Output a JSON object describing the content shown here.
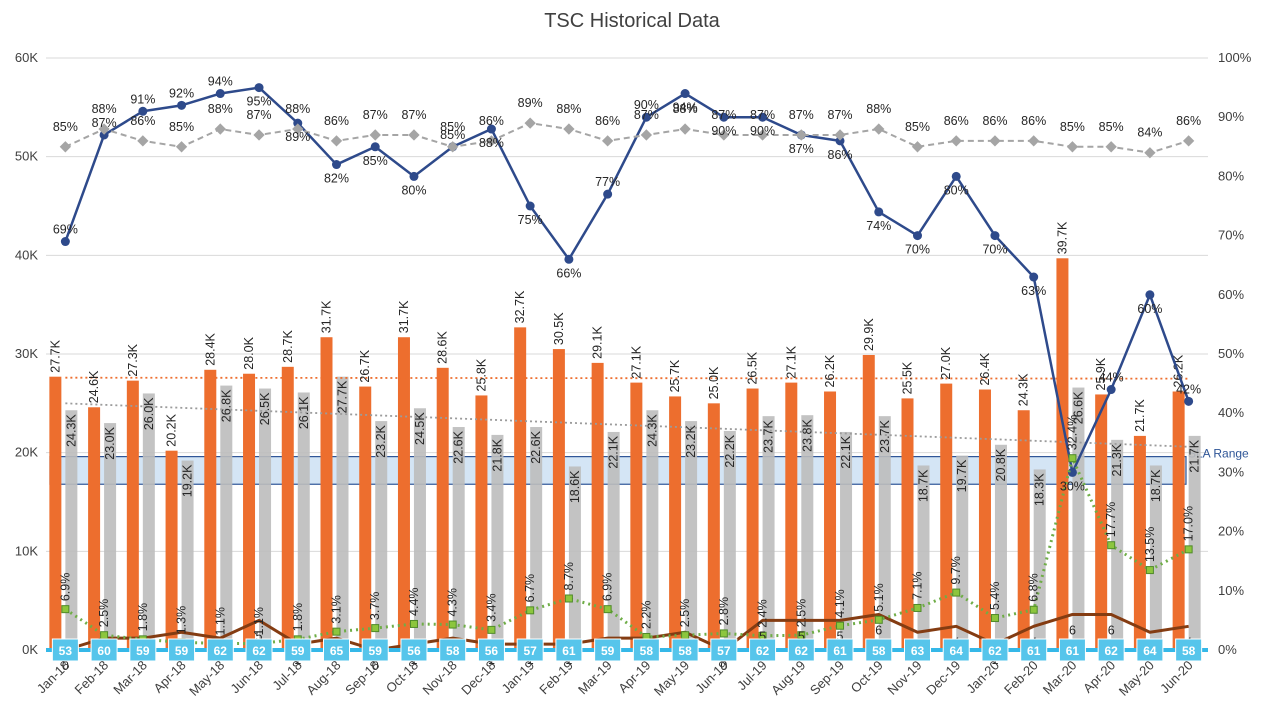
{
  "title": "TSC Historical Data",
  "sla_label": "SLA Range",
  "colors": {
    "orange": "#ED6E2E",
    "gray": "#BCBCBC",
    "navy": "#2E4A8B",
    "brown": "#843C12",
    "lightgray": "#A5A5A5",
    "green": "#6FAD47",
    "cyan": "#35B8E8",
    "sla_fill": "#C6DCF2",
    "sla_stroke": "#2E5597"
  },
  "chart_data": {
    "type": "bar",
    "title": "TSC Historical Data",
    "categories": [
      "Jan-18",
      "Feb-18",
      "Mar-18",
      "Apr-18",
      "May-18",
      "Jun-18",
      "Jul-18",
      "Aug-18",
      "Sep-18",
      "Oct-18",
      "Nov-18",
      "Dec-18",
      "Jan-19",
      "Feb-19",
      "Mar-19",
      "Apr-19",
      "May-19",
      "Jun-19",
      "Jul-19",
      "Aug-19",
      "Sep-19",
      "Oct-19",
      "Nov-19",
      "Dec-19",
      "Jan-20",
      "Feb-20",
      "Mar-20",
      "Apr-20",
      "May-20",
      "Jun-20"
    ],
    "y_left": {
      "ylim": [
        0,
        60000
      ],
      "ticks": [
        0,
        10000,
        20000,
        30000,
        40000,
        50000,
        60000
      ],
      "tick_labels": [
        "0K",
        "10K",
        "20K",
        "30K",
        "40K",
        "50K",
        "60K"
      ]
    },
    "y_right": {
      "ylim": [
        0,
        100
      ],
      "ticks": [
        0,
        10,
        20,
        30,
        40,
        50,
        60,
        70,
        80,
        90,
        100
      ],
      "tick_labels": [
        "0%",
        "10%",
        "20%",
        "30%",
        "40%",
        "50%",
        "60%",
        "70%",
        "80%",
        "90%",
        "100%"
      ]
    },
    "grid": true,
    "sla_range": [
      16800,
      19600
    ],
    "series": [
      {
        "kind": "bar",
        "axis": "left",
        "offset": 0,
        "values": [
          27700,
          24600,
          27300,
          20200,
          28400,
          28000,
          28700,
          31700,
          26700,
          31700,
          28600,
          25800,
          32700,
          30500,
          29100,
          27100,
          25700,
          25000,
          26500,
          27100,
          26200,
          29900,
          25500,
          27000,
          26400,
          24300,
          39700,
          25900,
          21700,
          26200
        ],
        "labels": [
          "27.7K",
          "24.6K",
          "27.3K",
          "20.2K",
          "28.4K",
          "28.0K",
          "28.7K",
          "31.7K",
          "26.7K",
          "31.7K",
          "28.6K",
          "25.8K",
          "32.7K",
          "30.5K",
          "29.1K",
          "27.1K",
          "25.7K",
          "25.0K",
          "26.5K",
          "27.1K",
          "26.2K",
          "29.9K",
          "25.5K",
          "27.0K",
          "26.4K",
          "24.3K",
          "39.7K",
          "25.9K",
          "21.7K",
          "26.2K"
        ]
      },
      {
        "kind": "bar",
        "axis": "left",
        "offset": 1,
        "values": [
          24300,
          23000,
          26000,
          19200,
          26800,
          26500,
          26100,
          27700,
          23200,
          24500,
          22600,
          21800,
          22600,
          18600,
          22100,
          24300,
          23200,
          22200,
          23700,
          23800,
          22100,
          23700,
          18700,
          19700,
          20800,
          18300,
          26600,
          21300,
          18700,
          21700
        ],
        "labels": [
          "24.3K",
          "23.0K",
          "26.0K",
          "19.2K",
          "26.8K",
          "26.5K",
          "26.1K",
          "27.7K",
          "23.2K",
          "24.5K",
          "22.6K",
          "21.8K",
          "22.6K",
          "18.6K",
          "22.1K",
          "24.3K",
          "23.2K",
          "22.2K",
          "23.7K",
          "23.8K",
          "22.1K",
          "23.7K",
          "18.7K",
          "19.7K",
          "20.8K",
          "18.3K",
          "26.6K",
          "21.3K",
          "18.7K",
          "21.7K"
        ]
      },
      {
        "kind": "line",
        "axis": "right",
        "style": "navy",
        "values": [
          69,
          87,
          91,
          92,
          94,
          95,
          89,
          82,
          85,
          80,
          85,
          88,
          75,
          66,
          77,
          90,
          94,
          90,
          90,
          87,
          86,
          74,
          70,
          80,
          70,
          63,
          30,
          44,
          60,
          42
        ],
        "labels": [
          "69%",
          "87%",
          "91%",
          "92%",
          "94%",
          "95%",
          "89%",
          "82%",
          "85%",
          "80%",
          "85%",
          "88%",
          "75%",
          "66%",
          "77%",
          "90%",
          "94%",
          "90%",
          "90%",
          "87%",
          "86%",
          "74%",
          "70%",
          "80%",
          "70%",
          "63%",
          "30%",
          "44%",
          "60%",
          "42%"
        ]
      },
      {
        "kind": "line",
        "axis": "right",
        "style": "lightgray-dashed",
        "values": [
          85,
          88,
          86,
          85,
          88,
          87,
          88,
          86,
          87,
          87,
          85,
          86,
          89,
          88,
          86,
          87,
          88,
          87,
          87,
          87,
          87,
          88,
          85,
          86,
          86,
          86,
          85,
          85,
          84,
          86
        ],
        "labels": [
          "85%",
          "88%",
          "86%",
          "85%",
          "88%",
          "87%",
          "88%",
          "86%",
          "87%",
          "87%",
          "85%",
          "86%",
          "89%",
          "88%",
          "86%",
          "87%",
          "88%",
          "87%",
          "87%",
          "87%",
          "87%",
          "88%",
          "85%",
          "86%",
          "86%",
          "86%",
          "85%",
          "85%",
          "84%",
          "86%"
        ]
      },
      {
        "kind": "line",
        "axis": "right",
        "style": "brown",
        "values": [
          0,
          2,
          2,
          3,
          2,
          5,
          1,
          2,
          0,
          1,
          2,
          1,
          1,
          1,
          2,
          2,
          3,
          0,
          5,
          5,
          5,
          6,
          3,
          4,
          1,
          4,
          6,
          6,
          3,
          4
        ],
        "labels": [
          "0",
          "2",
          "2",
          "3",
          "2",
          "5",
          "1",
          "2",
          "0",
          "1",
          "2",
          "1",
          "1",
          "1",
          "2",
          "2",
          "3",
          "0",
          "5",
          "5",
          "5",
          "6",
          "3",
          "4",
          "1",
          "4",
          "6",
          "6",
          "3",
          "4"
        ]
      },
      {
        "kind": "line",
        "axis": "right",
        "style": "green-dotted",
        "values": [
          6.9,
          2.5,
          1.8,
          1.3,
          1.1,
          1.1,
          1.8,
          3.1,
          3.7,
          4.4,
          4.3,
          3.4,
          6.7,
          8.7,
          6.9,
          2.2,
          2.5,
          2.8,
          2.4,
          2.5,
          4.1,
          5.1,
          7.1,
          9.7,
          5.4,
          6.8,
          32.4,
          17.7,
          13.5,
          17.0
        ],
        "labels": [
          "6.9%",
          "2.5%",
          "1.8%",
          "1.3%",
          "1.1%",
          "1.1%",
          "1.8%",
          "3.1%",
          "3.7%",
          "4.4%",
          "4.3%",
          "3.4%",
          "6.7%",
          "8.7%",
          "6.9%",
          "2.2%",
          "2.5%",
          "2.8%",
          "2.4%",
          "2.5%",
          "4.1%",
          "5.1%",
          "7.1%",
          "9.7%",
          "5.4%",
          "6.8%",
          "32.4%",
          "17.7%",
          "13.5%",
          "17.0%"
        ]
      },
      {
        "kind": "marker-labels",
        "axis": "left",
        "values": [
          53,
          60,
          59,
          59,
          62,
          62,
          59,
          65,
          59,
          56,
          58,
          56,
          57,
          61,
          59,
          58,
          58,
          57,
          62,
          62,
          61,
          58,
          63,
          64,
          62,
          61,
          61,
          62,
          64,
          58
        ],
        "labels": [
          "53",
          "60",
          "59",
          "59",
          "62",
          "62",
          "59",
          "65",
          "59",
          "56",
          "58",
          "56",
          "57",
          "61",
          "59",
          "58",
          "58",
          "57",
          "62",
          "62",
          "61",
          "58",
          "63",
          "64",
          "62",
          "61",
          "61",
          "62",
          "64",
          "58"
        ]
      }
    ],
    "trendlines": [
      {
        "style": "orange-dotted",
        "from": 27600,
        "to": 27500
      },
      {
        "style": "gray-dotted",
        "from": 25000,
        "to": 20600
      }
    ]
  }
}
